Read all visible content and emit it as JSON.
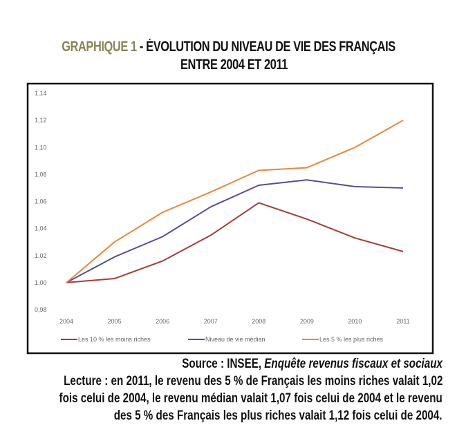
{
  "title": {
    "prefix": "GRAPHIQUE 1",
    "line1": " - ÉVOLUTION DU NIVEAU DE VIE DES FRANÇAIS",
    "line2": "ENTRE 2004 ET 2011",
    "accent_color": "#8a8458"
  },
  "chart_data": {
    "type": "line",
    "title": "",
    "xlabel": "",
    "ylabel": "",
    "x": [
      "2004",
      "2005",
      "2006",
      "2007",
      "2008",
      "2009",
      "2010",
      "2011"
    ],
    "ylim": [
      0.98,
      1.14
    ],
    "yticks": [
      "0,98",
      "1,00",
      "1,02",
      "1,04",
      "1,06",
      "1,08",
      "1,10",
      "1,12",
      "1,14"
    ],
    "ytick_values": [
      0.98,
      1.0,
      1.02,
      1.04,
      1.06,
      1.08,
      1.1,
      1.12,
      1.14
    ],
    "grid": false,
    "legend_position": "bottom",
    "series": [
      {
        "name": "Les 10 % les moins riches",
        "color": "#a33b3b",
        "values": [
          1.0,
          1.003,
          1.016,
          1.035,
          1.059,
          1.047,
          1.033,
          1.023
        ]
      },
      {
        "name": "Niveau de vie médian",
        "color": "#5b4a9b",
        "values": [
          1.0,
          1.019,
          1.034,
          1.056,
          1.072,
          1.076,
          1.071,
          1.07
        ]
      },
      {
        "name": "Les 5 % les plus riches",
        "color": "#e8883c",
        "values": [
          1.0,
          1.03,
          1.052,
          1.067,
          1.083,
          1.085,
          1.1,
          1.12
        ]
      }
    ]
  },
  "notes": {
    "source_label": "Source : INSEE, ",
    "source_title": "Enquête revenus fiscaux et sociaux",
    "lecture_lines": [
      "Lecture : en 2011, le revenu des 5 % de Français les moins riches valait 1,02",
      "fois celui de 2004, le revenu médian valait 1,07 fois celui de 2004 et le revenu",
      "des 5 % des Français les plus riches valait 1,12 fois celui de 2004."
    ]
  }
}
